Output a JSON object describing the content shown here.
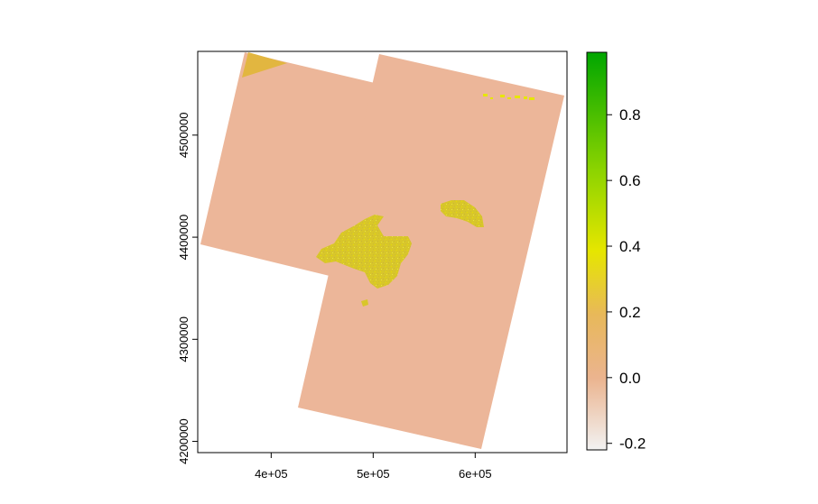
{
  "chart_data": {
    "type": "raster",
    "title": "",
    "xlabel": "",
    "ylabel": "",
    "xlim": [
      328000,
      690000
    ],
    "ylim": [
      4189000,
      4582000
    ],
    "x_ticks": [
      {
        "value": 400000,
        "label": "4e+05"
      },
      {
        "value": 500000,
        "label": "5e+05"
      },
      {
        "value": 600000,
        "label": "6e+05"
      }
    ],
    "y_ticks": [
      {
        "value": 4200000,
        "label": "4200000"
      },
      {
        "value": 4300000,
        "label": "4300000"
      },
      {
        "value": 4400000,
        "label": "4400000"
      },
      {
        "value": 4500000,
        "label": "4500000"
      }
    ],
    "legend": {
      "range": [
        -0.22,
        0.99
      ],
      "ticks": [
        {
          "value": -0.2,
          "label": "-0.2"
        },
        {
          "value": 0.0,
          "label": "0.0"
        },
        {
          "value": 0.2,
          "label": "0.2"
        },
        {
          "value": 0.4,
          "label": "0.4"
        },
        {
          "value": 0.6,
          "label": "0.6"
        },
        {
          "value": 0.8,
          "label": "0.8"
        }
      ],
      "colors": {
        "low": "#f2f2f2",
        "zero": "#ebb48f",
        "mid": "#e6c21e",
        "yellow": "#e6e600",
        "high": "#00a600"
      }
    },
    "fill_colors": {
      "background_scene": "#ecb699",
      "land": "#d8c62a",
      "corner_patch": "#e2b640"
    }
  }
}
